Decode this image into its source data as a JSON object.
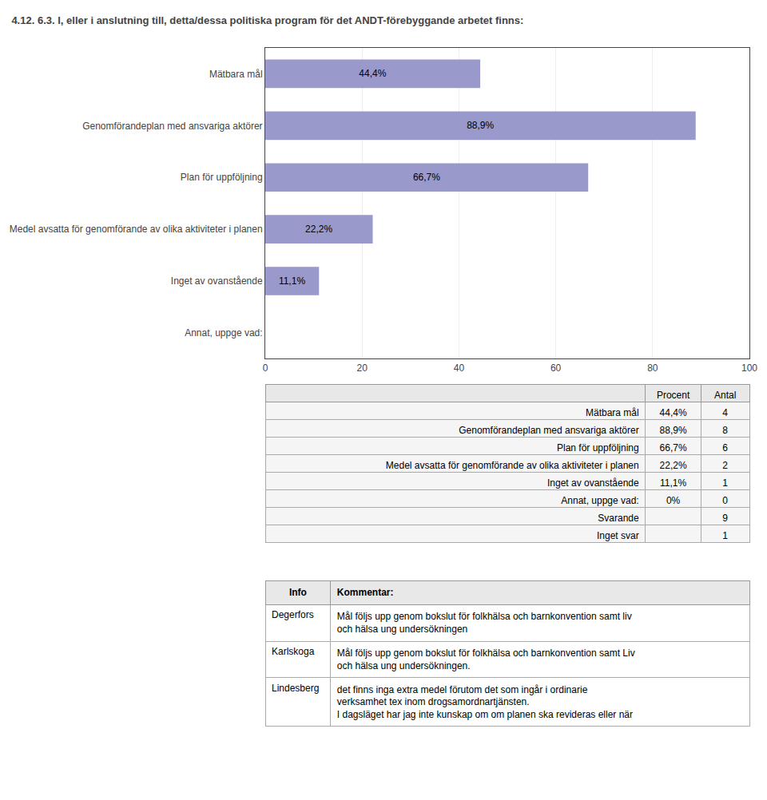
{
  "chart_data": [
    {
      "type": "bar",
      "title": "4.12. 6.3. I, eller i anslutning till, detta/dessa politiska program för det ANDT-förebyggande arbetet finns:",
      "orientation": "horizontal",
      "categories": [
        "Mätbara mål",
        "Genomförandeplan med ansvariga aktörer",
        "Plan för uppföljning",
        "Medel avsatta för genomförande av olika aktiviteter i planen",
        "Inget av ovanstående",
        "Annat, uppge vad:"
      ],
      "values": [
        44.4,
        88.9,
        66.7,
        22.2,
        11.1,
        0.0
      ],
      "value_labels": [
        "44,4%",
        "88,9%",
        "66,7%",
        "22,2%",
        "11,1%",
        null
      ],
      "data_labels": true,
      "color": "#9999cc",
      "xlim": [
        0,
        100
      ],
      "xticks": [
        0,
        20,
        40,
        60,
        80,
        100
      ],
      "grid": true
    },
    {
      "type": "table",
      "header": [
        null,
        "Procent",
        "Antal"
      ],
      "rows": [
        [
          "Mätbara mål",
          "44,4%",
          "4"
        ],
        [
          "Genomförandeplan med ansvariga aktörer",
          "88,9%",
          "8"
        ],
        [
          "Plan för uppföljning",
          "66,7%",
          "6"
        ],
        [
          "Medel avsatta för genomförande av olika aktiviteter i planen",
          "22,2%",
          "2"
        ],
        [
          "Inget av ovanstående",
          "11,1%",
          "1"
        ],
        [
          "Annat, uppge vad:",
          "0%",
          "0"
        ],
        [
          "Svarande",
          null,
          "9"
        ],
        [
          "Inget svar",
          null,
          "1"
        ]
      ]
    },
    {
      "type": "table",
      "header": [
        "Info",
        "Kommentar:"
      ],
      "rows": [
        [
          "Degerfors",
          "Mål följs upp genom bokslut för folkhälsa och barnkonvention samt liv\noch hälsa ung undersökningen"
        ],
        [
          "Karlskoga",
          "Mål följs upp genom bokslut för folkhälsa och barnkonvention samt Liv\noch hälsa ung undersökningen."
        ],
        [
          "Lindesberg",
          "det finns inga extra medel förutom det som ingår i ordinarie\nverksamhet tex inom drogsamordnartjänsten.\nI dagsläget har jag inte kunskap om om planen ska revideras eller när"
        ]
      ]
    }
  ]
}
